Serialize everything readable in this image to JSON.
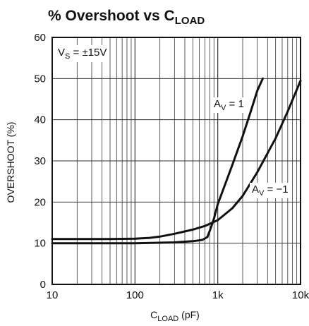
{
  "chart_data": {
    "type": "line",
    "title": {
      "main": "% Overshoot vs C",
      "sub": "LOAD"
    },
    "xlabel": {
      "main": "C",
      "sub": "LOAD",
      "suffix": " (pF)"
    },
    "ylabel": "OVERSHOOT (%)",
    "x_scale": "log",
    "xlim": [
      10,
      10000
    ],
    "ylim": [
      0,
      60
    ],
    "x_ticks": [
      {
        "value": 10,
        "label": "10"
      },
      {
        "value": 100,
        "label": "100"
      },
      {
        "value": 1000,
        "label": "1k"
      },
      {
        "value": 10000,
        "label": "10k"
      }
    ],
    "y_ticks": [
      {
        "value": 0,
        "label": "0"
      },
      {
        "value": 10,
        "label": "10"
      },
      {
        "value": 20,
        "label": "20"
      },
      {
        "value": 30,
        "label": "30"
      },
      {
        "value": 40,
        "label": "40"
      },
      {
        "value": 50,
        "label": "50"
      },
      {
        "value": 60,
        "label": "60"
      }
    ],
    "grid": true,
    "condition": {
      "main": "V",
      "sub": "S",
      "suffix": " = ±15V"
    },
    "series": [
      {
        "name": {
          "main": "A",
          "sub": "V",
          "suffix": " = 1"
        },
        "x": [
          10,
          100,
          300,
          500,
          650,
          750,
          800,
          850,
          900,
          1000,
          1500,
          2000,
          2500,
          3000,
          3500
        ],
        "y": [
          10,
          10,
          10.2,
          10.5,
          10.8,
          11.5,
          13,
          14.5,
          16,
          19.5,
          29,
          36,
          42,
          47,
          50
        ]
      },
      {
        "name": {
          "main": "A",
          "sub": "V",
          "suffix": " = −1"
        },
        "x": [
          10,
          50,
          100,
          150,
          200,
          300,
          500,
          700,
          1000,
          1500,
          2000,
          3000,
          5000,
          7000,
          10000
        ],
        "y": [
          11,
          11,
          11.1,
          11.3,
          11.6,
          12.3,
          13.3,
          14.2,
          15.6,
          18.5,
          21.5,
          27.2,
          35.5,
          42,
          49.5
        ]
      }
    ],
    "colors": {
      "line": "#111111",
      "grid": "#333333",
      "background": "#ffffff"
    }
  }
}
